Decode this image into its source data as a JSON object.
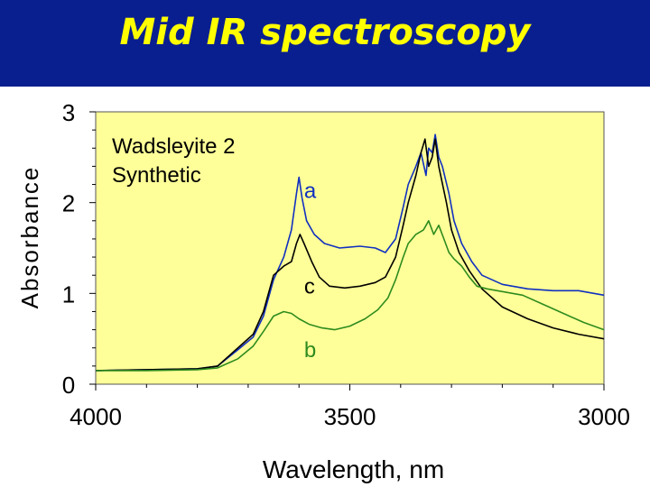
{
  "slide": {
    "title": "Mid IR spectroscopy"
  },
  "colors": {
    "title_bar": "#0a1f8f",
    "title_text": "#ffff00",
    "plot_bg": "#ffff99",
    "series_a": "#1030c0",
    "series_b": "#2e8b1e",
    "series_c": "#000000"
  },
  "chart_data": {
    "type": "line",
    "xlabel": "Wavelength, nm",
    "ylabel": "Absorbance",
    "xlim": [
      4000,
      3000
    ],
    "ylim": [
      0,
      3
    ],
    "x_ticks": [
      4000,
      3500,
      3000
    ],
    "y_ticks": [
      0,
      1,
      2,
      3
    ],
    "grid": false,
    "annotation": [
      "Wadsleyite 2",
      "Synthetic"
    ],
    "series": [
      {
        "name": "a",
        "label_position": [
          3590,
          2.05
        ],
        "points": [
          [
            4000,
            0.15
          ],
          [
            3900,
            0.16
          ],
          [
            3800,
            0.17
          ],
          [
            3760,
            0.2
          ],
          [
            3720,
            0.38
          ],
          [
            3690,
            0.52
          ],
          [
            3670,
            0.75
          ],
          [
            3650,
            1.15
          ],
          [
            3630,
            1.4
          ],
          [
            3615,
            1.7
          ],
          [
            3605,
            2.1
          ],
          [
            3600,
            2.28
          ],
          [
            3594,
            2.05
          ],
          [
            3585,
            1.8
          ],
          [
            3570,
            1.65
          ],
          [
            3550,
            1.55
          ],
          [
            3520,
            1.5
          ],
          [
            3480,
            1.52
          ],
          [
            3450,
            1.5
          ],
          [
            3430,
            1.45
          ],
          [
            3410,
            1.6
          ],
          [
            3395,
            1.95
          ],
          [
            3385,
            2.2
          ],
          [
            3370,
            2.4
          ],
          [
            3360,
            2.55
          ],
          [
            3350,
            2.3
          ],
          [
            3345,
            2.6
          ],
          [
            3338,
            2.55
          ],
          [
            3332,
            2.75
          ],
          [
            3325,
            2.5
          ],
          [
            3318,
            2.4
          ],
          [
            3305,
            2.1
          ],
          [
            3295,
            1.8
          ],
          [
            3280,
            1.55
          ],
          [
            3260,
            1.35
          ],
          [
            3240,
            1.2
          ],
          [
            3200,
            1.1
          ],
          [
            3150,
            1.05
          ],
          [
            3100,
            1.03
          ],
          [
            3050,
            1.03
          ],
          [
            3000,
            0.98
          ]
        ]
      },
      {
        "name": "c",
        "label_position": [
          3590,
          1.0
        ],
        "points": [
          [
            4000,
            0.15
          ],
          [
            3900,
            0.16
          ],
          [
            3800,
            0.17
          ],
          [
            3760,
            0.2
          ],
          [
            3720,
            0.4
          ],
          [
            3690,
            0.55
          ],
          [
            3670,
            0.8
          ],
          [
            3650,
            1.2
          ],
          [
            3630,
            1.3
          ],
          [
            3615,
            1.35
          ],
          [
            3605,
            1.55
          ],
          [
            3598,
            1.65
          ],
          [
            3590,
            1.55
          ],
          [
            3575,
            1.35
          ],
          [
            3560,
            1.18
          ],
          [
            3540,
            1.08
          ],
          [
            3510,
            1.06
          ],
          [
            3480,
            1.08
          ],
          [
            3450,
            1.12
          ],
          [
            3430,
            1.18
          ],
          [
            3410,
            1.4
          ],
          [
            3395,
            1.75
          ],
          [
            3385,
            2.0
          ],
          [
            3370,
            2.3
          ],
          [
            3360,
            2.55
          ],
          [
            3352,
            2.7
          ],
          [
            3345,
            2.4
          ],
          [
            3338,
            2.5
          ],
          [
            3332,
            2.7
          ],
          [
            3325,
            2.4
          ],
          [
            3310,
            2.0
          ],
          [
            3300,
            1.7
          ],
          [
            3285,
            1.45
          ],
          [
            3265,
            1.25
          ],
          [
            3240,
            1.05
          ],
          [
            3200,
            0.85
          ],
          [
            3150,
            0.72
          ],
          [
            3100,
            0.62
          ],
          [
            3050,
            0.55
          ],
          [
            3000,
            0.5
          ]
        ]
      },
      {
        "name": "b",
        "label_position": [
          3590,
          0.3
        ],
        "points": [
          [
            4000,
            0.15
          ],
          [
            3900,
            0.15
          ],
          [
            3800,
            0.16
          ],
          [
            3760,
            0.18
          ],
          [
            3720,
            0.28
          ],
          [
            3690,
            0.42
          ],
          [
            3670,
            0.58
          ],
          [
            3650,
            0.75
          ],
          [
            3630,
            0.8
          ],
          [
            3615,
            0.78
          ],
          [
            3600,
            0.72
          ],
          [
            3580,
            0.66
          ],
          [
            3555,
            0.62
          ],
          [
            3530,
            0.6
          ],
          [
            3500,
            0.64
          ],
          [
            3470,
            0.72
          ],
          [
            3445,
            0.82
          ],
          [
            3425,
            0.95
          ],
          [
            3410,
            1.15
          ],
          [
            3395,
            1.4
          ],
          [
            3385,
            1.55
          ],
          [
            3370,
            1.65
          ],
          [
            3355,
            1.7
          ],
          [
            3345,
            1.8
          ],
          [
            3335,
            1.65
          ],
          [
            3325,
            1.75
          ],
          [
            3315,
            1.6
          ],
          [
            3305,
            1.45
          ],
          [
            3295,
            1.38
          ],
          [
            3280,
            1.3
          ],
          [
            3265,
            1.18
          ],
          [
            3250,
            1.08
          ],
          [
            3230,
            1.05
          ],
          [
            3200,
            1.02
          ],
          [
            3160,
            0.98
          ],
          [
            3120,
            0.88
          ],
          [
            3080,
            0.78
          ],
          [
            3040,
            0.68
          ],
          [
            3000,
            0.6
          ]
        ]
      }
    ]
  }
}
